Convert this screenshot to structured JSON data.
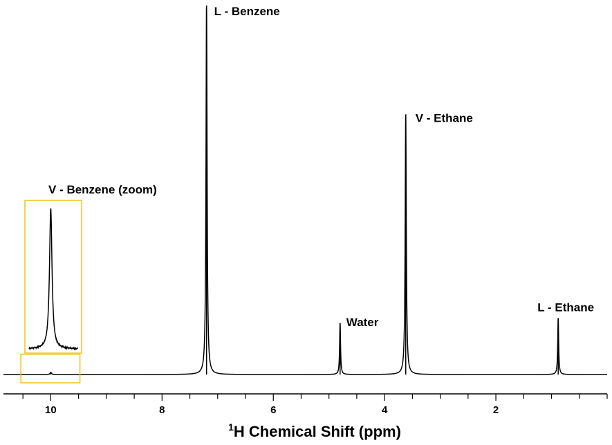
{
  "chart_data": {
    "type": "line",
    "title": "",
    "xlabel": {
      "superscript": "1",
      "text": "H Chemical Shift (ppm)"
    },
    "ylabel": "",
    "x_reversed": true,
    "xlim": [
      10.85,
      0.0
    ],
    "ylim": [
      0,
      1.0
    ],
    "major_ticks": [
      10,
      8,
      6,
      4,
      2
    ],
    "minor_tick_step": 0.5,
    "grid": false,
    "line_color": "#000000",
    "zoom_box_color": "#f0c020",
    "peaks": [
      {
        "name": "L - Benzene",
        "label": "L - Benzene",
        "shift": 7.2,
        "height": 1.0,
        "width": 0.012
      },
      {
        "name": "V - Ethane",
        "label": "V - Ethane",
        "shift": 3.62,
        "height": 0.705,
        "width": 0.012
      },
      {
        "name": "Water",
        "label": "Water",
        "shift": 4.8,
        "height": 0.14,
        "width": 0.01
      },
      {
        "name": "L - Ethane",
        "label": "L - Ethane",
        "shift": 0.88,
        "height": 0.153,
        "width": 0.01
      },
      {
        "name": "V - Benzene",
        "label": "",
        "shift": 10.0,
        "height": 0.006,
        "width": 0.015
      }
    ],
    "zoom_inset": {
      "label": "V - Benzene (zoom)",
      "center_shift": 10.0,
      "source_range": [
        10.5,
        9.5
      ],
      "source_height": 0.055,
      "peak_height": 0.38,
      "baseline": 0.07
    }
  }
}
